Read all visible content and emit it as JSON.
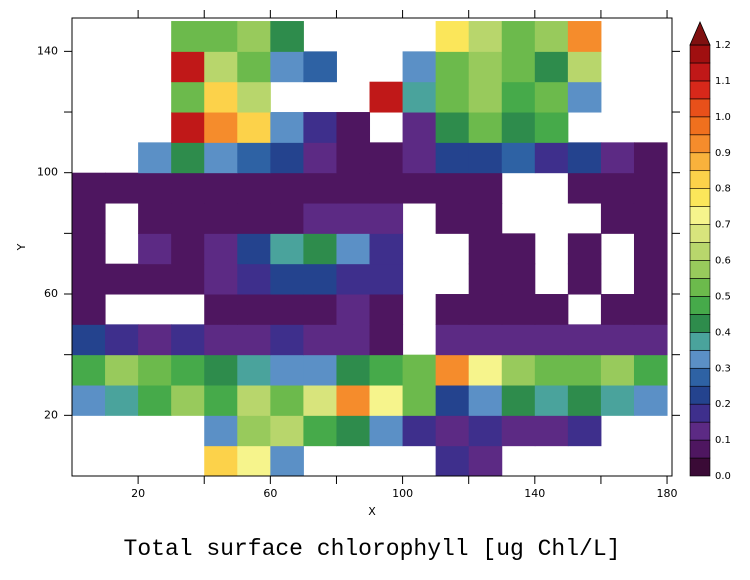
{
  "chart_data": {
    "type": "heatmap",
    "title": "Total surface chlorophyll [ug Chl/L]",
    "x_label": "X",
    "y_label": "Y",
    "xlim": [
      0,
      181.5
    ],
    "ylim": [
      0,
      151
    ],
    "xticks": [
      20,
      60,
      100,
      140,
      180
    ],
    "xminor": [
      40,
      80,
      120,
      160
    ],
    "yticks": [
      20,
      60,
      100,
      140
    ],
    "yminor": [
      40,
      80,
      120
    ],
    "xbins": [
      0,
      10,
      20,
      30,
      40,
      50,
      60,
      70,
      80,
      90,
      100,
      110,
      120,
      130,
      140,
      150,
      160,
      170,
      180
    ],
    "ybins": [
      0,
      10,
      20,
      30,
      40,
      50,
      60,
      70,
      80,
      90,
      100,
      110,
      120,
      130,
      140,
      150
    ],
    "values": [
      [
        null,
        null,
        null,
        null,
        0.8,
        0.7,
        0.3,
        null,
        null,
        null,
        null,
        0.15,
        0.1,
        null,
        null,
        null,
        null,
        null
      ],
      [
        null,
        null,
        null,
        null,
        0.3,
        0.55,
        0.6,
        0.45,
        0.4,
        0.3,
        0.15,
        0.1,
        0.15,
        0.1,
        0.1,
        0.15,
        null,
        null
      ],
      [
        0.3,
        0.35,
        0.45,
        0.55,
        0.45,
        0.6,
        0.5,
        0.65,
        0.9,
        0.7,
        0.5,
        0.2,
        0.3,
        0.4,
        0.35,
        0.4,
        0.35,
        0.3
      ],
      [
        0.45,
        0.55,
        0.5,
        0.45,
        0.4,
        0.35,
        0.3,
        0.3,
        0.4,
        0.45,
        0.5,
        0.9,
        0.7,
        0.55,
        0.5,
        0.5,
        0.55,
        0.45
      ],
      [
        0.2,
        0.15,
        0.1,
        0.15,
        0.1,
        0.1,
        0.15,
        0.1,
        0.1,
        0.05,
        null,
        0.1,
        0.1,
        0.1,
        0.1,
        0.1,
        0.1,
        0.1
      ],
      [
        0.05,
        null,
        null,
        null,
        0.05,
        0.05,
        0.05,
        0.05,
        0.1,
        0.05,
        null,
        0.05,
        0.05,
        0.05,
        0.05,
        null,
        0.05,
        0.05
      ],
      [
        0.05,
        0.05,
        0.05,
        0.05,
        0.1,
        0.15,
        0.2,
        0.2,
        0.15,
        0.15,
        null,
        null,
        0.05,
        0.05,
        null,
        0.05,
        null,
        0.05
      ],
      [
        0.05,
        null,
        0.1,
        0.05,
        0.1,
        0.2,
        0.35,
        0.4,
        0.3,
        0.15,
        null,
        null,
        0.05,
        0.05,
        null,
        0.05,
        null,
        0.05
      ],
      [
        0.05,
        null,
        0.05,
        0.05,
        0.05,
        0.05,
        0.05,
        0.1,
        0.1,
        0.1,
        null,
        0.05,
        0.05,
        null,
        null,
        null,
        0.05,
        0.05
      ],
      [
        0.05,
        0.05,
        0.05,
        0.05,
        0.05,
        0.05,
        0.05,
        0.05,
        0.05,
        0.05,
        0.05,
        0.05,
        0.05,
        null,
        null,
        0.05,
        0.05,
        0.05
      ],
      [
        null,
        null,
        0.3,
        0.4,
        0.3,
        0.25,
        0.2,
        0.1,
        0.05,
        0.05,
        0.1,
        0.2,
        0.2,
        0.25,
        0.15,
        0.2,
        0.1,
        0.05
      ],
      [
        null,
        null,
        null,
        1.1,
        0.9,
        0.8,
        0.3,
        0.15,
        0.05,
        null,
        0.1,
        0.4,
        0.5,
        0.4,
        0.45,
        null,
        null,
        null
      ],
      [
        null,
        null,
        null,
        0.5,
        0.8,
        0.6,
        null,
        null,
        null,
        1.1,
        0.35,
        0.5,
        0.55,
        0.45,
        0.5,
        0.3,
        null,
        null
      ],
      [
        null,
        null,
        null,
        1.1,
        0.6,
        0.5,
        0.3,
        0.25,
        null,
        null,
        0.3,
        0.5,
        0.55,
        0.5,
        0.4,
        0.6,
        null,
        null
      ],
      [
        null,
        null,
        null,
        0.5,
        0.5,
        0.55,
        0.4,
        null,
        null,
        null,
        null,
        0.75,
        0.6,
        0.5,
        0.55,
        0.9,
        null,
        null
      ]
    ],
    "levels": [
      0,
      0.05,
      0.1,
      0.15,
      0.2,
      0.25,
      0.3,
      0.35,
      0.4,
      0.45,
      0.5,
      0.55,
      0.6,
      0.65,
      0.7,
      0.75,
      0.8,
      0.85,
      0.9,
      0.95,
      1,
      1.05,
      1.1,
      1.15,
      1.2
    ],
    "colors": [
      "#3a0a36",
      "#4e1660",
      "#5c2a84",
      "#3e2f8c",
      "#24438e",
      "#2e62a4",
      "#5b90c6",
      "#4aa39c",
      "#2e8c4c",
      "#46aa4a",
      "#6cba4c",
      "#98ca5c",
      "#b8d66c",
      "#d8e47c",
      "#f6f48c",
      "#fbe65a",
      "#fcd24a",
      "#f9b23c",
      "#f58c2c",
      "#f0701e",
      "#e8501a",
      "#d8281a",
      "#c01818",
      "#a00f10"
    ],
    "over_color": "#801010",
    "colorbar_ticks": [
      {
        "value": 0,
        "label": "0.0"
      },
      0.1,
      0.2,
      0.3,
      0.4,
      0.5,
      0.6,
      0.7,
      0.8,
      0.9,
      {
        "value": 1,
        "label": "1.0"
      },
      1.1,
      1.2
    ]
  }
}
